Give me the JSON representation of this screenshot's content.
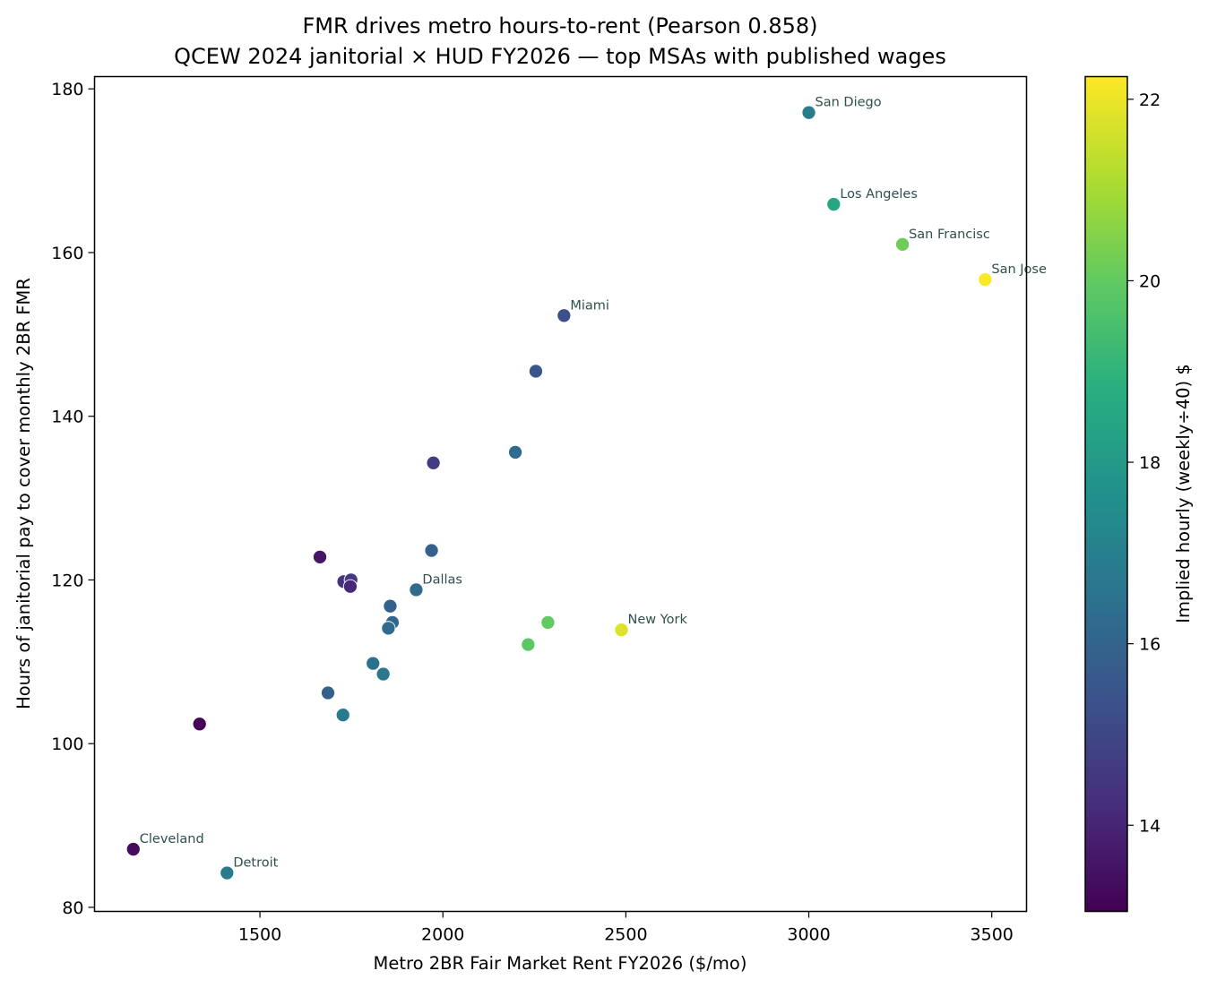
{
  "chart_data": {
    "type": "scatter",
    "title": "FMR drives metro hours-to-rent (Pearson 0.858)",
    "subtitle": "QCEW 2024 janitorial × HUD FY2026 — top MSAs with published wages",
    "xlabel": "Metro 2BR Fair Market Rent FY2026 ($/mo)",
    "ylabel": "Hours of janitorial pay to cover monthly 2BR FMR",
    "colorbar_label": "Implied hourly (weekly÷40) $",
    "colormap": "viridis",
    "xlim": [
      1048,
      3595
    ],
    "ylim": [
      79.5,
      181.5
    ],
    "clim": [
      13.05,
      22.25
    ],
    "x_ticks": [
      1500,
      2000,
      2500,
      3000,
      3500
    ],
    "y_ticks": [
      80,
      100,
      120,
      140,
      160,
      180
    ],
    "colorbar_ticks": [
      14,
      16,
      18,
      20,
      22
    ],
    "grid": false,
    "points": [
      {
        "x": 3000,
        "y": 177.1,
        "c": 16.9,
        "label": "San Diego"
      },
      {
        "x": 3068,
        "y": 165.9,
        "c": 18.5,
        "label": "Los Angeles"
      },
      {
        "x": 3256,
        "y": 161.0,
        "c": 20.2,
        "label": "San Francisc"
      },
      {
        "x": 3482,
        "y": 156.7,
        "c": 22.2,
        "label": "San Jose"
      },
      {
        "x": 2331,
        "y": 152.3,
        "c": 15.3,
        "label": "Miami"
      },
      {
        "x": 2254,
        "y": 145.5,
        "c": 15.5
      },
      {
        "x": 1974,
        "y": 134.3,
        "c": 14.7
      },
      {
        "x": 2198,
        "y": 135.6,
        "c": 16.2
      },
      {
        "x": 1969,
        "y": 123.6,
        "c": 15.9
      },
      {
        "x": 1664,
        "y": 122.8,
        "c": 13.6
      },
      {
        "x": 1729,
        "y": 119.8,
        "c": 14.4
      },
      {
        "x": 1749,
        "y": 120.0,
        "c": 14.6
      },
      {
        "x": 1747,
        "y": 119.2,
        "c": 14.1
      },
      {
        "x": 1927,
        "y": 118.8,
        "c": 16.2,
        "label": "Dallas"
      },
      {
        "x": 1856,
        "y": 116.8,
        "c": 15.9
      },
      {
        "x": 1862,
        "y": 114.8,
        "c": 16.1
      },
      {
        "x": 1851,
        "y": 114.1,
        "c": 16.2
      },
      {
        "x": 2287,
        "y": 114.8,
        "c": 20.0
      },
      {
        "x": 2233,
        "y": 112.1,
        "c": 19.9
      },
      {
        "x": 2488,
        "y": 113.9,
        "c": 21.8,
        "label": "New York"
      },
      {
        "x": 1809,
        "y": 109.8,
        "c": 16.5
      },
      {
        "x": 1837,
        "y": 108.5,
        "c": 16.7
      },
      {
        "x": 1686,
        "y": 106.2,
        "c": 15.9
      },
      {
        "x": 1727,
        "y": 103.5,
        "c": 16.8
      },
      {
        "x": 1335,
        "y": 102.4,
        "c": 13.1
      },
      {
        "x": 1154,
        "y": 87.1,
        "c": 13.3,
        "label": "Cleveland"
      },
      {
        "x": 1410,
        "y": 84.2,
        "c": 16.8,
        "label": "Detroit"
      }
    ]
  }
}
